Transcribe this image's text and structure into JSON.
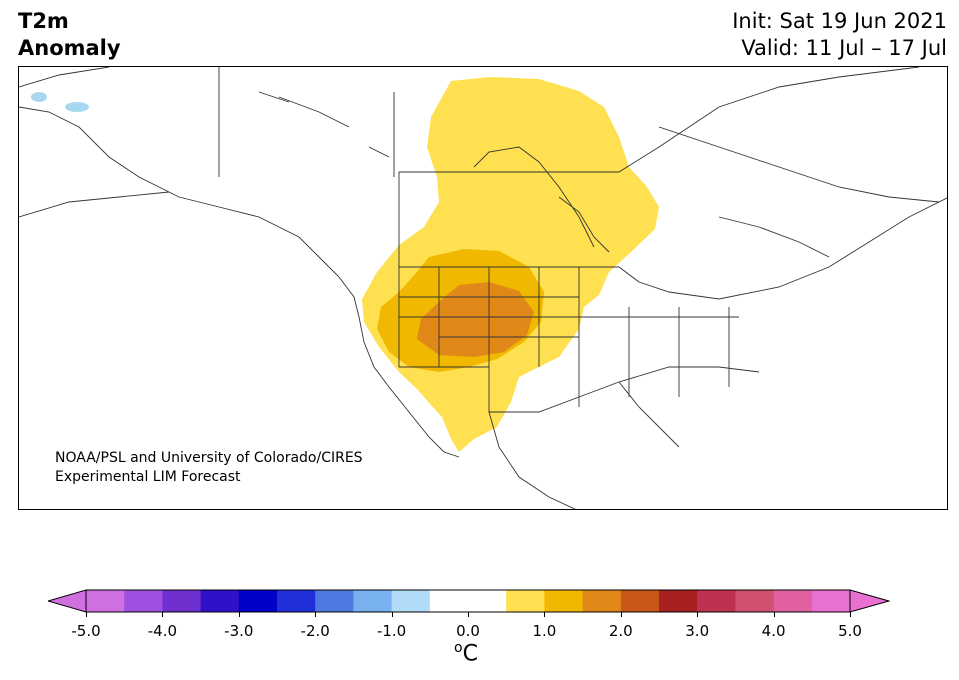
{
  "title": {
    "left_line1": "T2m",
    "left_line2": "Anomaly",
    "init": "Init: Sat 19 Jun 2021",
    "valid": "Valid: 11 Jul – 17 Jul"
  },
  "credit": {
    "line1": "NOAA/PSL and University of Colorado/CIRES",
    "line2": "Experimental LIM Forecast"
  },
  "colorbar": {
    "unit_base": "C",
    "unit_sup": "o",
    "ticks": [
      "-5.0",
      "-4.0",
      "-3.0",
      "-2.0",
      "-1.0",
      "0.0",
      "1.0",
      "2.0",
      "3.0",
      "4.0",
      "5.0"
    ],
    "colors": [
      "#d070e0",
      "#a050e0",
      "#7030d0",
      "#3010c8",
      "#0000c8",
      "#2030d8",
      "#4f78e0",
      "#78b0f0",
      "#b0dcf8",
      "#ffffff",
      "#ffffff",
      "#ffe050",
      "#f0b800",
      "#e08818",
      "#c85818",
      "#a82020",
      "#c03050",
      "#d05070",
      "#e060a0",
      "#e870d0"
    ],
    "under_color": "#d070e0",
    "over_color": "#e870d0"
  },
  "map": {
    "land_color": "#ffffff",
    "water_color": "#a8d8f0",
    "border_color": "#333333",
    "anomaly_levels": [
      {
        "level": "0.5–1.0",
        "color": "#ffe050"
      },
      {
        "level": "1.0–1.5",
        "color": "#f0b800"
      },
      {
        "level": "1.5–2.0",
        "color": "#e08818"
      }
    ]
  }
}
